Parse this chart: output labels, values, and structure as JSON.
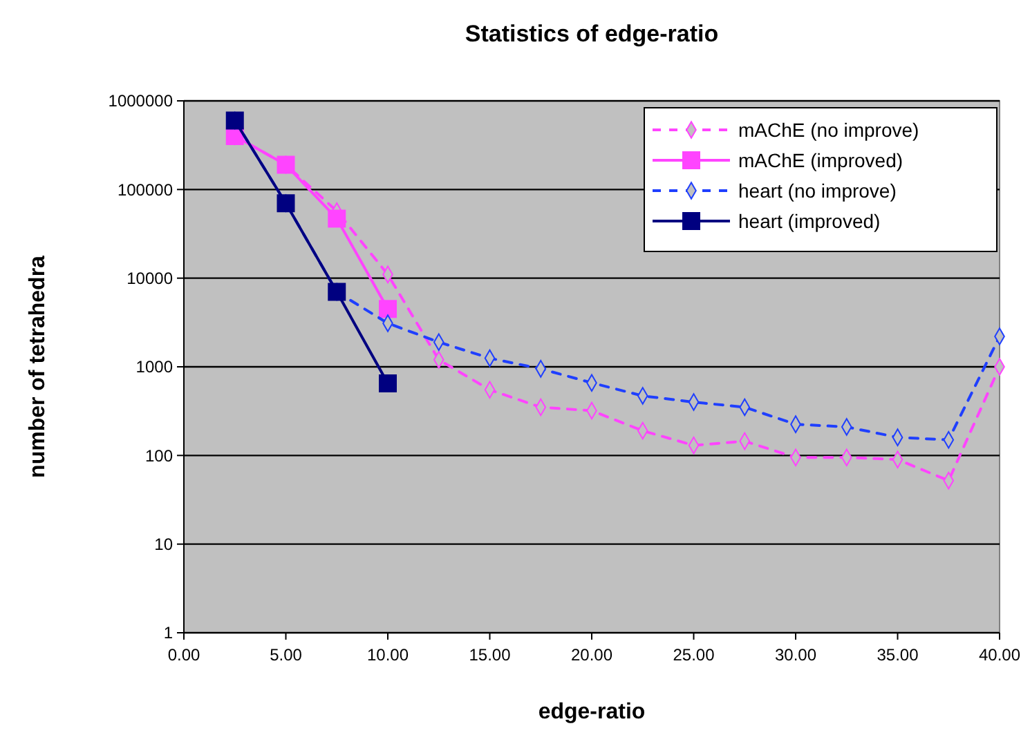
{
  "chart_data": {
    "type": "line",
    "title": "Statistics of edge-ratio",
    "xlabel": "edge-ratio",
    "ylabel": "number of tetrahedra",
    "log": "y",
    "grid": "y",
    "legend": "top right",
    "xlim": [
      0,
      40
    ],
    "xticks": [
      {
        "value": 0,
        "label": "0.00"
      },
      {
        "value": 5,
        "label": "5.00"
      },
      {
        "value": 10,
        "label": "10.00"
      },
      {
        "value": 15,
        "label": "15.00"
      },
      {
        "value": 20,
        "label": "20.00"
      },
      {
        "value": 25,
        "label": "25.00"
      },
      {
        "value": 30,
        "label": "30.00"
      },
      {
        "value": 35,
        "label": "35.00"
      },
      {
        "value": 40,
        "label": "40.00"
      }
    ],
    "ylim": [
      1,
      1000000
    ],
    "yticks": [
      1,
      10,
      100,
      1000,
      10000,
      100000,
      1000000
    ],
    "series": [
      {
        "name": "mAChE (no improve)",
        "color": "#ff44ff",
        "marker": "diamond",
        "line_style": "dashed",
        "x": [
          2.5,
          5,
          7.5,
          10,
          12.5,
          15,
          17.5,
          20,
          22.5,
          25,
          27.5,
          30,
          32.5,
          35,
          37.5,
          40
        ],
        "values": [
          400000,
          190000,
          57000,
          11000,
          1200,
          550,
          350,
          320,
          190,
          130,
          145,
          95,
          95,
          90,
          52,
          1000
        ]
      },
      {
        "name": "mAChE (improved)",
        "color": "#ff44ff",
        "marker": "square",
        "line_style": "solid",
        "x": [
          2.5,
          5,
          7.5,
          10
        ],
        "values": [
          400000,
          190000,
          47000,
          4500
        ]
      },
      {
        "name": "heart (no improve)",
        "color": "#1f3fff",
        "marker": "diamond",
        "line_style": "dashed",
        "x": [
          2.5,
          5,
          7.5,
          10,
          12.5,
          15,
          17.5,
          20,
          22.5,
          25,
          27.5,
          30,
          32.5,
          35,
          37.5,
          40
        ],
        "values": [
          600000,
          70000,
          7000,
          3100,
          1900,
          1250,
          950,
          660,
          470,
          400,
          350,
          225,
          210,
          160,
          150,
          2200
        ]
      },
      {
        "name": "heart (improved)",
        "color": "#000080",
        "marker": "square",
        "line_style": "solid",
        "x": [
          2.5,
          5,
          7.5,
          10
        ],
        "values": [
          600000,
          70000,
          7000,
          650
        ]
      }
    ]
  }
}
